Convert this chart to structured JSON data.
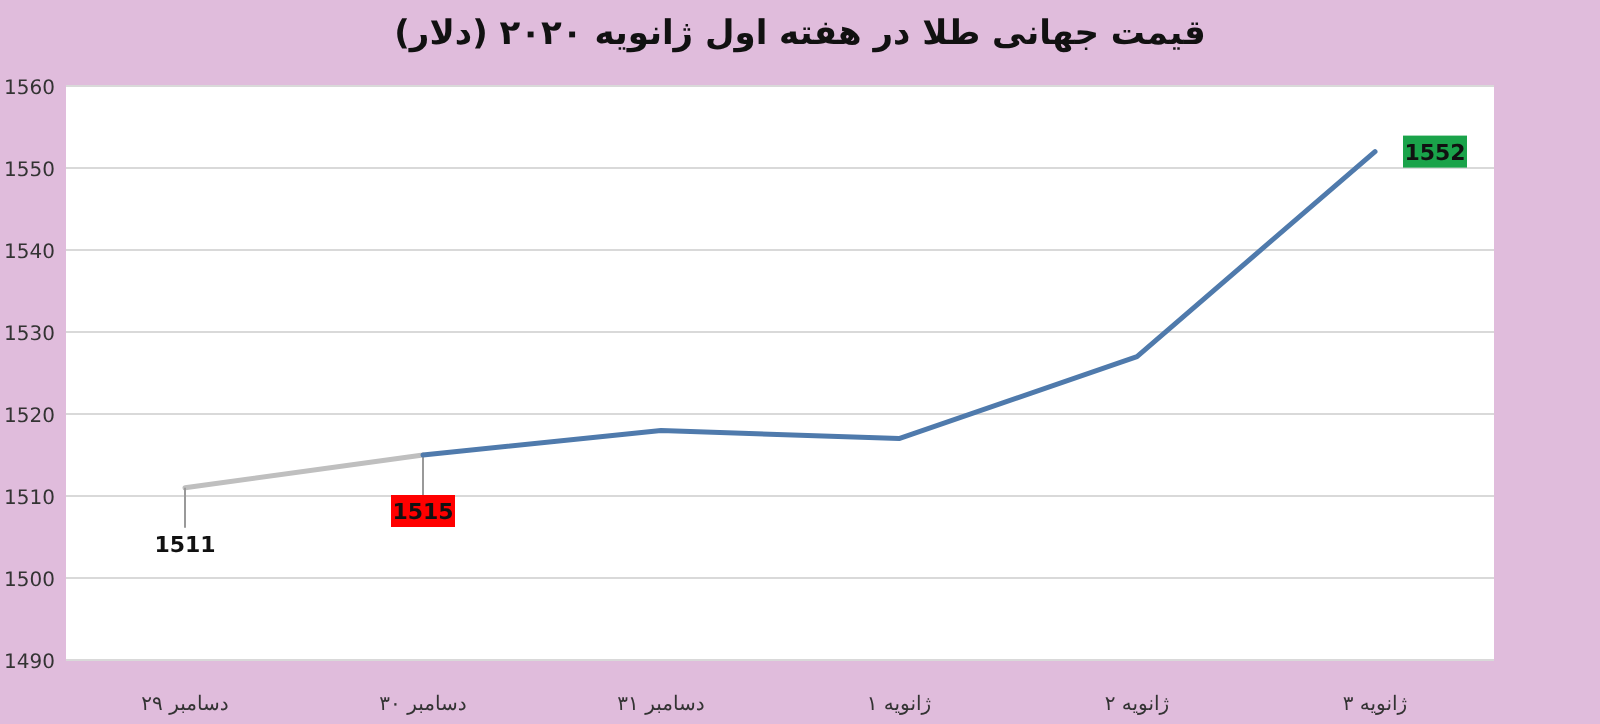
{
  "chart_data": {
    "type": "line",
    "title": "قیمت جهانی طلا در هفته اول ژانویه ۲۰۲۰ (دلار)",
    "categories": [
      "دسامبر ۲۹",
      "دسامبر ۳۰",
      "دسامبر ۳۱",
      "ژانویه ۱",
      "ژانویه ۲",
      "ژانویه ۳"
    ],
    "series": [
      {
        "color": "#bfbfbf",
        "values": [
          1511,
          1515,
          null,
          null,
          null,
          null
        ],
        "value_labels": [
          "1511",
          "1515",
          null,
          null,
          null,
          null
        ]
      },
      {
        "color": "#4f7aac",
        "values": [
          null,
          1515,
          1518,
          1517,
          1527,
          1552
        ],
        "value_labels": [
          null,
          null,
          null,
          null,
          null,
          "1552"
        ]
      }
    ],
    "ylim": [
      1490,
      1560
    ],
    "yticks": [
      1490,
      1500,
      1510,
      1520,
      1530,
      1540,
      1550,
      1560
    ],
    "grid": "y",
    "marker": "none",
    "line_style": "solid"
  }
}
